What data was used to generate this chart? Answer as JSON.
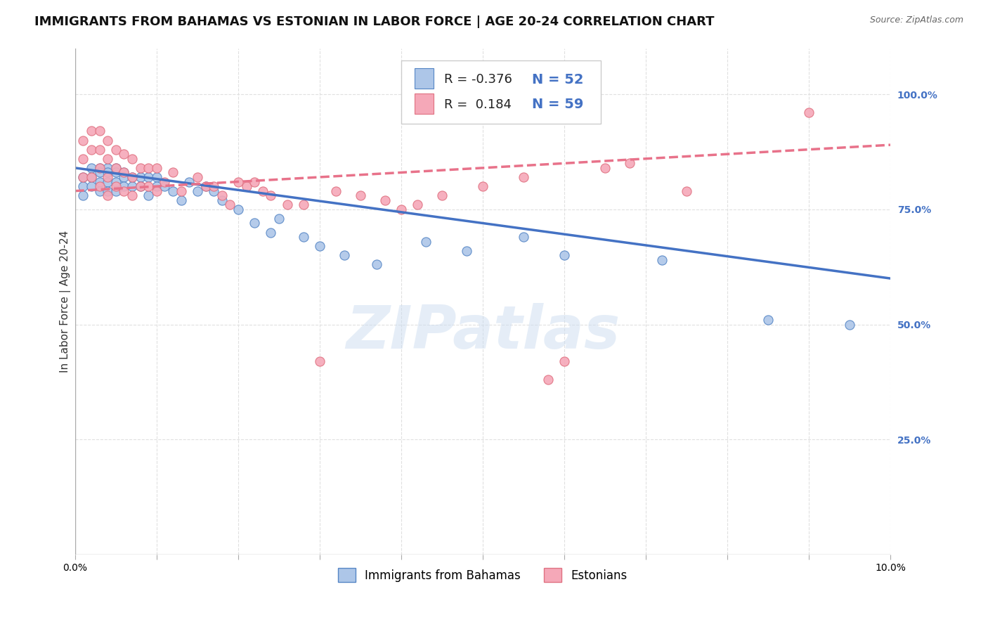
{
  "title": "IMMIGRANTS FROM BAHAMAS VS ESTONIAN IN LABOR FORCE | AGE 20-24 CORRELATION CHART",
  "source": "Source: ZipAtlas.com",
  "ylabel": "In Labor Force | Age 20-24",
  "xlim": [
    0.0,
    0.1
  ],
  "ylim": [
    0.0,
    1.1
  ],
  "xticks": [
    0.0,
    0.01,
    0.02,
    0.03,
    0.04,
    0.05,
    0.06,
    0.07,
    0.08,
    0.09,
    0.1
  ],
  "xtick_labels": [
    "0.0%",
    "",
    "",
    "",
    "",
    "",
    "",
    "",
    "",
    "",
    "10.0%"
  ],
  "yticks_right": [
    0.25,
    0.5,
    0.75,
    1.0
  ],
  "ytick_labels_right": [
    "25.0%",
    "50.0%",
    "75.0%",
    "100.0%"
  ],
  "blue_R": "-0.376",
  "blue_N": "52",
  "pink_R": "0.184",
  "pink_N": "59",
  "blue_color": "#adc6e8",
  "pink_color": "#f5a8b8",
  "blue_edge_color": "#5585c5",
  "pink_edge_color": "#e07080",
  "blue_line_color": "#4472c4",
  "pink_line_color": "#e8728a",
  "legend_blue_label": "Immigrants from Bahamas",
  "legend_pink_label": "Estonians",
  "blue_scatter_x": [
    0.001,
    0.001,
    0.001,
    0.002,
    0.002,
    0.002,
    0.003,
    0.003,
    0.003,
    0.003,
    0.004,
    0.004,
    0.004,
    0.004,
    0.005,
    0.005,
    0.005,
    0.005,
    0.006,
    0.006,
    0.006,
    0.007,
    0.007,
    0.008,
    0.008,
    0.009,
    0.009,
    0.01,
    0.01,
    0.011,
    0.012,
    0.013,
    0.014,
    0.015,
    0.016,
    0.017,
    0.018,
    0.02,
    0.022,
    0.024,
    0.025,
    0.028,
    0.03,
    0.033,
    0.037,
    0.043,
    0.048,
    0.055,
    0.06,
    0.072,
    0.085,
    0.095
  ],
  "blue_scatter_y": [
    0.82,
    0.8,
    0.78,
    0.84,
    0.82,
    0.8,
    0.84,
    0.83,
    0.81,
    0.79,
    0.84,
    0.83,
    0.81,
    0.79,
    0.84,
    0.83,
    0.81,
    0.79,
    0.83,
    0.82,
    0.8,
    0.82,
    0.8,
    0.82,
    0.8,
    0.82,
    0.78,
    0.82,
    0.8,
    0.8,
    0.79,
    0.77,
    0.81,
    0.79,
    0.8,
    0.79,
    0.77,
    0.75,
    0.72,
    0.7,
    0.73,
    0.69,
    0.67,
    0.65,
    0.63,
    0.68,
    0.66,
    0.69,
    0.65,
    0.64,
    0.51,
    0.5
  ],
  "pink_scatter_x": [
    0.001,
    0.001,
    0.001,
    0.002,
    0.002,
    0.002,
    0.003,
    0.003,
    0.003,
    0.003,
    0.004,
    0.004,
    0.004,
    0.004,
    0.005,
    0.005,
    0.005,
    0.006,
    0.006,
    0.006,
    0.007,
    0.007,
    0.007,
    0.008,
    0.008,
    0.009,
    0.009,
    0.01,
    0.01,
    0.011,
    0.012,
    0.013,
    0.015,
    0.016,
    0.017,
    0.018,
    0.019,
    0.02,
    0.021,
    0.022,
    0.023,
    0.024,
    0.026,
    0.028,
    0.03,
    0.032,
    0.035,
    0.038,
    0.04,
    0.042,
    0.045,
    0.05,
    0.055,
    0.058,
    0.06,
    0.065,
    0.068,
    0.075,
    0.09
  ],
  "pink_scatter_y": [
    0.9,
    0.86,
    0.82,
    0.92,
    0.88,
    0.82,
    0.92,
    0.88,
    0.84,
    0.8,
    0.9,
    0.86,
    0.82,
    0.78,
    0.88,
    0.84,
    0.8,
    0.87,
    0.83,
    0.79,
    0.86,
    0.82,
    0.78,
    0.84,
    0.8,
    0.84,
    0.8,
    0.84,
    0.79,
    0.81,
    0.83,
    0.79,
    0.82,
    0.8,
    0.8,
    0.78,
    0.76,
    0.81,
    0.8,
    0.81,
    0.79,
    0.78,
    0.76,
    0.76,
    0.42,
    0.79,
    0.78,
    0.77,
    0.75,
    0.76,
    0.78,
    0.8,
    0.82,
    0.38,
    0.42,
    0.84,
    0.85,
    0.79,
    0.96
  ],
  "blue_trend_x": [
    0.0,
    0.1
  ],
  "blue_trend_y": [
    0.84,
    0.6
  ],
  "pink_trend_x": [
    0.0,
    0.1
  ],
  "pink_trend_y": [
    0.79,
    0.89
  ],
  "watermark": "ZIPatlas",
  "background_color": "#ffffff",
  "grid_color": "#e0e0e0",
  "title_fontsize": 13,
  "axis_label_fontsize": 11,
  "tick_fontsize": 10,
  "right_tick_color": "#4472c4"
}
